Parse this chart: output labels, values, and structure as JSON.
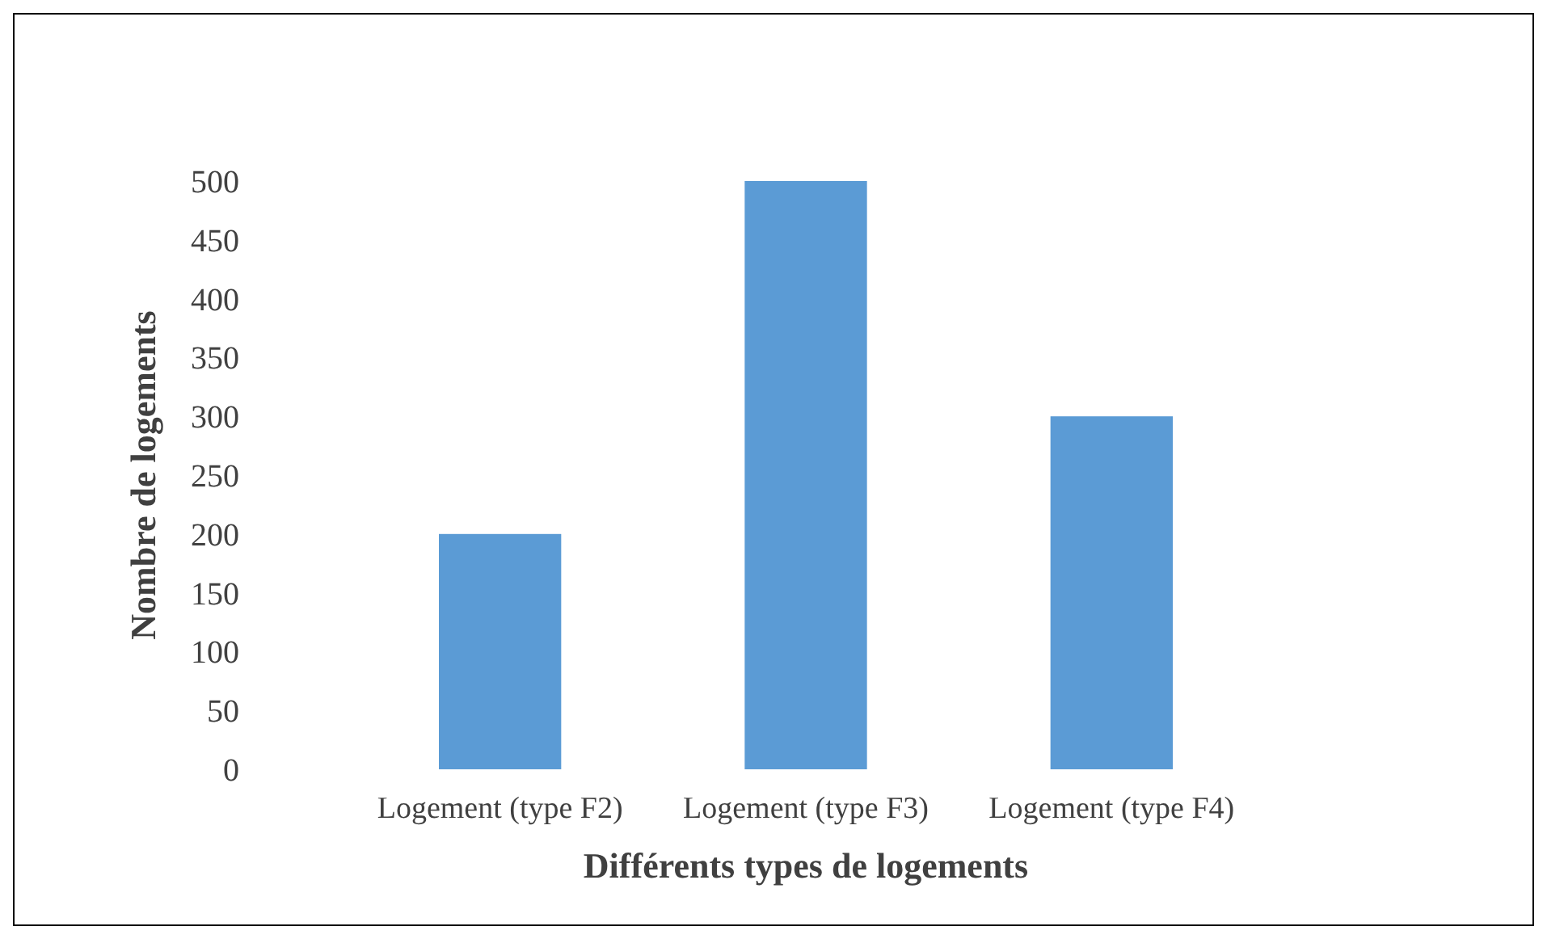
{
  "chart_data": {
    "type": "bar",
    "xlabel": "Différents types de logements",
    "ylabel": "Nombre de logements",
    "categories": [
      "Logement (type F2)",
      "Logement (type F3)",
      "Logement (type F4)"
    ],
    "values": [
      200,
      500,
      300
    ],
    "color": "#5b9bd5",
    "ylim": [
      0,
      500
    ],
    "yticks": [
      0,
      50,
      100,
      150,
      200,
      250,
      300,
      350,
      400,
      450,
      500
    ],
    "grid": false
  }
}
